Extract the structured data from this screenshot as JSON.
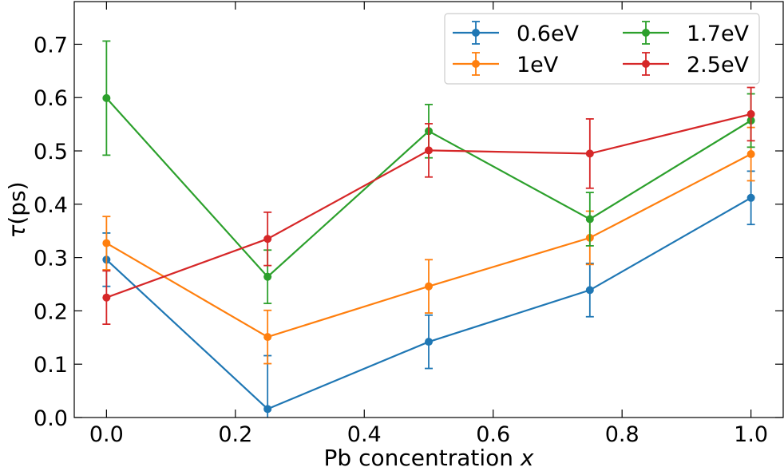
{
  "chart_data": {
    "type": "line",
    "xlabel": "Pb concentration x",
    "xlabel_prefix": "Pb concentration ",
    "xlabel_var": "x",
    "ylabel": "τ(ps)",
    "ylabel_sym": "τ",
    "ylabel_rest": "(ps)",
    "xlim": [
      -0.05,
      1.05
    ],
    "ylim": [
      0.0,
      0.78
    ],
    "xticks": [
      0.0,
      0.2,
      0.4,
      0.6,
      0.8,
      1.0
    ],
    "xtick_labels": [
      "0.0",
      "0.2",
      "0.4",
      "0.6",
      "0.8",
      "1.0"
    ],
    "yticks": [
      0.0,
      0.1,
      0.2,
      0.3,
      0.4,
      0.5,
      0.6,
      0.7
    ],
    "ytick_labels": [
      "0.0",
      "0.1",
      "0.2",
      "0.3",
      "0.4",
      "0.5",
      "0.6",
      "0.7"
    ],
    "x": [
      0.0,
      0.25,
      0.5,
      0.75,
      1.0
    ],
    "grid": false,
    "legend_position": "top-right",
    "series": [
      {
        "name": "0.6eV",
        "color": "#1f77b4",
        "values": [
          0.296,
          0.016,
          0.142,
          0.239,
          0.412
        ],
        "errors": [
          0.05,
          0.1,
          0.05,
          0.05,
          0.05
        ]
      },
      {
        "name": "1eV",
        "color": "#ff7f0e",
        "values": [
          0.327,
          0.151,
          0.246,
          0.337,
          0.494
        ],
        "errors": [
          0.05,
          0.05,
          0.05,
          0.05,
          0.05
        ]
      },
      {
        "name": "1.7eV",
        "color": "#2ca02c",
        "values": [
          0.599,
          0.264,
          0.537,
          0.372,
          0.557
        ],
        "errors": [
          0.107,
          0.05,
          0.05,
          0.05,
          0.05
        ]
      },
      {
        "name": "2.5eV",
        "color": "#d62728",
        "values": [
          0.225,
          0.335,
          0.501,
          0.495,
          0.569
        ],
        "errors": [
          0.05,
          0.05,
          0.05,
          0.065,
          0.05
        ]
      }
    ]
  }
}
